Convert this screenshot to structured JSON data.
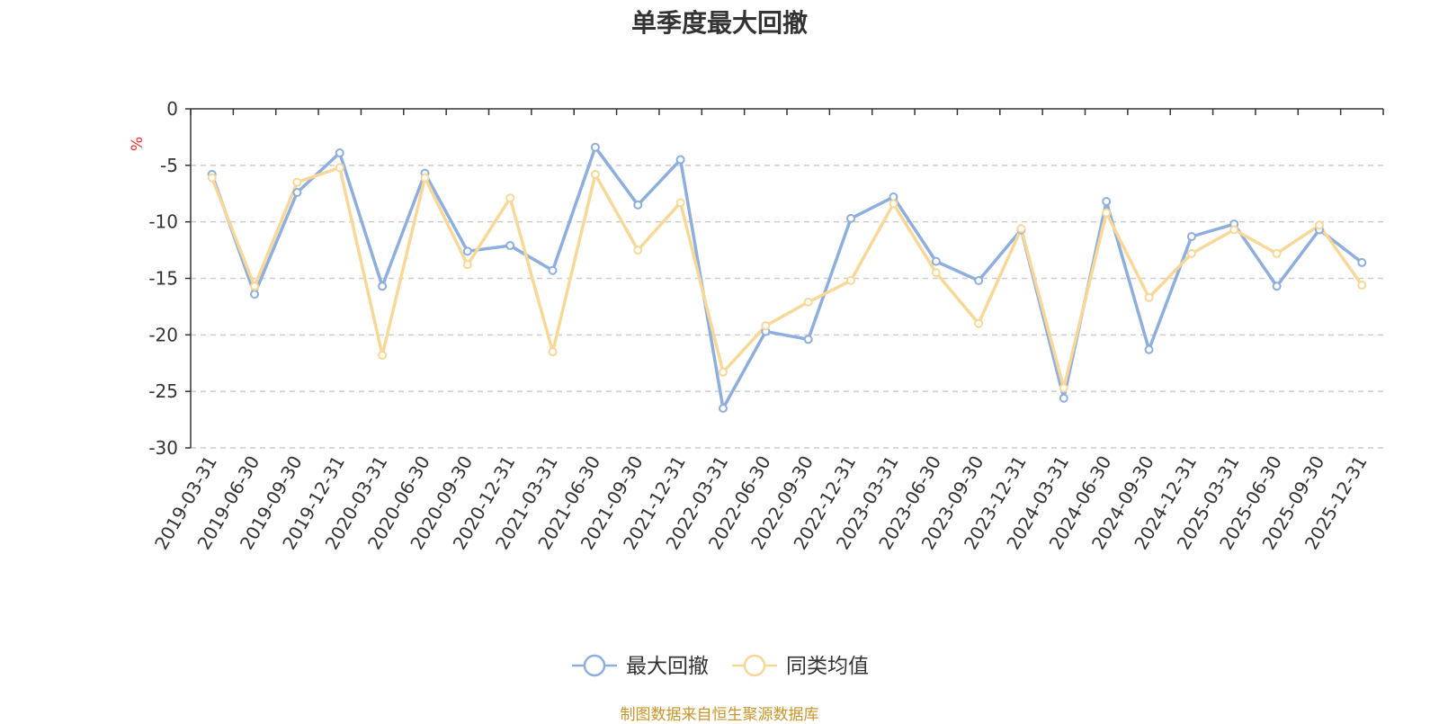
{
  "title": "单季度最大回撤",
  "source": "制图数据来自恒生聚源数据库",
  "chart_data": {
    "type": "line",
    "ylabel": "%",
    "ylim": [
      -30,
      0
    ],
    "yticks": [
      0,
      -5,
      -10,
      -15,
      -20,
      -25,
      -30
    ],
    "ytick_labels": [
      "0",
      "-5",
      "-10",
      "-15",
      "-20",
      "-25",
      "-30"
    ],
    "grid": true,
    "legend_position": "bottom",
    "categories": [
      "2019-03-31",
      "2019-06-30",
      "2019-09-30",
      "2019-12-31",
      "2020-03-31",
      "2020-06-30",
      "2020-09-30",
      "2020-12-31",
      "2021-03-31",
      "2021-06-30",
      "2021-09-30",
      "2021-12-31",
      "2022-03-31",
      "2022-06-30",
      "2022-09-30",
      "2022-12-31",
      "2023-03-31",
      "2023-06-30",
      "2023-09-30",
      "2023-12-31",
      "2024-03-31",
      "2024-06-30",
      "2024-09-30",
      "2024-12-31",
      "2025-03-31",
      "2025-06-30",
      "2025-09-30",
      "2025-12-31"
    ],
    "series": [
      {
        "name": "最大回撤",
        "color": "#8eaede",
        "values": [
          -5.8,
          -16.4,
          -7.4,
          -3.9,
          -15.7,
          -5.7,
          -12.6,
          -12.1,
          -14.3,
          -3.4,
          -8.5,
          -4.5,
          -26.5,
          -19.7,
          -20.4,
          -9.7,
          -7.8,
          -13.5,
          -15.2,
          -10.7,
          -25.6,
          -8.2,
          -21.3,
          -11.3,
          -10.2,
          -15.7,
          -10.7,
          -13.6
        ]
      },
      {
        "name": "同类均值",
        "color": "#f8d899",
        "values": [
          -6.1,
          -15.7,
          -6.5,
          -5.2,
          -21.8,
          -6.1,
          -13.8,
          -7.9,
          -21.5,
          -5.8,
          -12.5,
          -8.3,
          -23.3,
          -19.2,
          -17.1,
          -15.2,
          -8.4,
          -14.5,
          -19.0,
          -10.6,
          -24.7,
          -9.2,
          -16.7,
          -12.8,
          -10.7,
          -12.8,
          -10.3,
          -15.6
        ]
      }
    ]
  }
}
